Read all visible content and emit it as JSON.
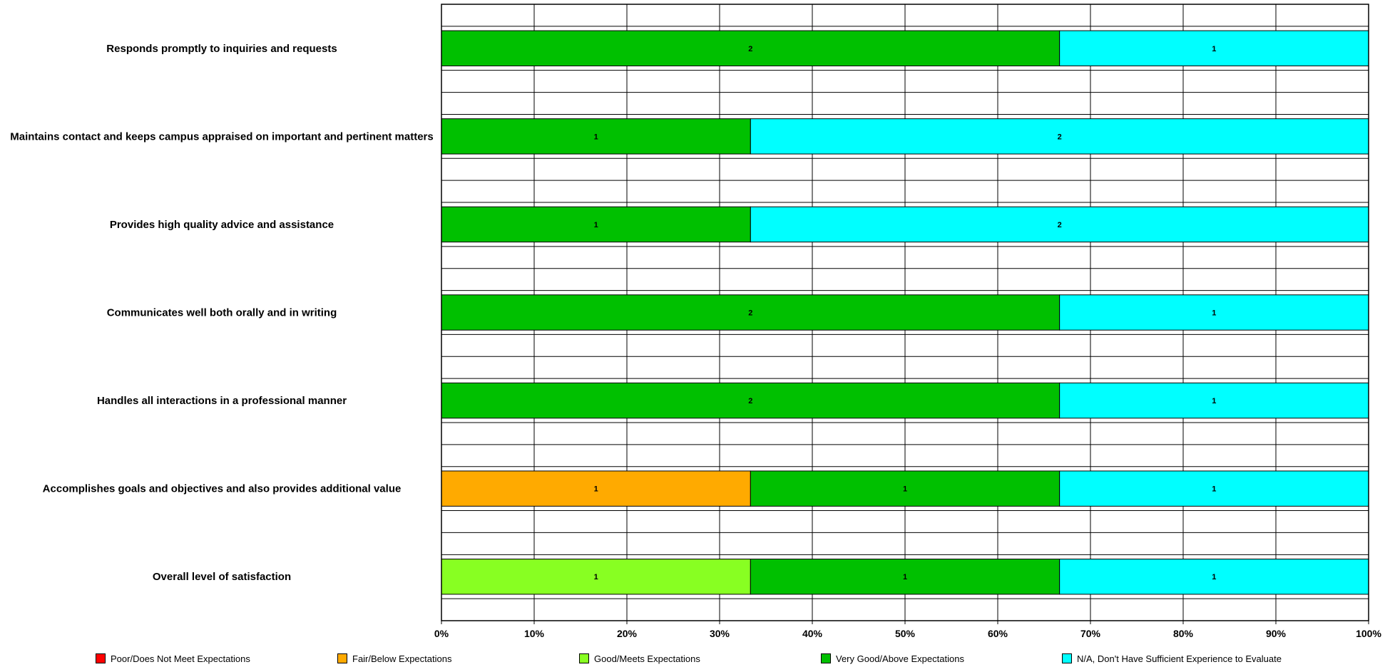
{
  "chart_data": {
    "type": "bar",
    "orientation": "horizontal",
    "stacked": "percent",
    "categories": [
      "Responds promptly to inquiries and requests",
      "Maintains contact and keeps campus appraised on important and pertinent matters",
      "Provides high quality advice and assistance",
      "Communicates well both orally and in writing",
      "Handles all interactions in a professional manner",
      "Accomplishes goals and objectives and also provides additional value",
      "Overall level of satisfaction"
    ],
    "series": [
      {
        "name": "Poor/Does Not Meet Expectations",
        "color": "#ff0000",
        "values": [
          0,
          0,
          0,
          0,
          0,
          0,
          0
        ]
      },
      {
        "name": "Fair/Below Expectations",
        "color": "#ffaa00",
        "values": [
          0,
          0,
          0,
          0,
          0,
          1,
          0
        ]
      },
      {
        "name": "Good/Meets Expectations",
        "color": "#88ff22",
        "values": [
          0,
          0,
          0,
          0,
          0,
          0,
          1
        ]
      },
      {
        "name": "Very Good/Above Expectations",
        "color": "#00c000",
        "values": [
          2,
          1,
          1,
          2,
          2,
          1,
          1
        ]
      },
      {
        "name": "N/A, Don't Have Sufficient Experience to Evaluate",
        "color": "#00ffff",
        "values": [
          1,
          2,
          2,
          1,
          1,
          1,
          1
        ]
      }
    ],
    "x_ticks": [
      "0%",
      "10%",
      "20%",
      "30%",
      "40%",
      "50%",
      "60%",
      "70%",
      "80%",
      "90%",
      "100%"
    ],
    "xlim": [
      0,
      100
    ],
    "grid": true,
    "legend_position": "bottom"
  }
}
